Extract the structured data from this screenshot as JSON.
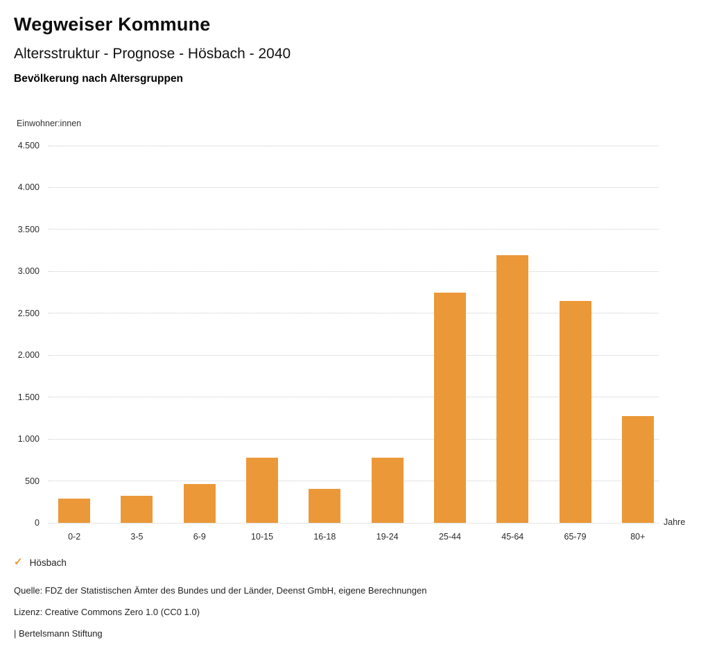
{
  "header": {
    "title": "Wegweiser Kommune",
    "subtitle": "Altersstruktur - Prognose - Hösbach - 2040",
    "caption": "Bevölkerung nach Altersgruppen"
  },
  "chart_data": {
    "type": "bar",
    "title": "Bevölkerung nach Altersgruppen",
    "categories": [
      "0-2",
      "3-5",
      "6-9",
      "10-15",
      "16-18",
      "19-24",
      "25-44",
      "45-64",
      "65-79",
      "80+"
    ],
    "series": [
      {
        "name": "Hösbach",
        "values": [
          290,
          320,
          460,
          775,
          405,
          775,
          2750,
          3190,
          2645,
          1275
        ]
      }
    ],
    "xlabel": "Jahre",
    "ylabel": "Einwohner:innen",
    "ylim": [
      0,
      4500
    ],
    "ytick_step": 500,
    "ytick_labels": [
      "0",
      "500",
      "1.000",
      "1.500",
      "2.000",
      "2.500",
      "3.000",
      "3.500",
      "4.000",
      "4.500"
    ],
    "grid": "horizontal-dotted",
    "bar_color": "#EB9839",
    "legend_position": "bottom-left"
  },
  "legend": {
    "items": [
      {
        "label": "Hösbach",
        "color": "#EB9839",
        "icon": "check-icon",
        "glyph": "✓"
      }
    ]
  },
  "footer": {
    "source": "Quelle: FDZ der Statistischen Ämter des Bundes und der Länder, Deenst GmbH, eigene Berechnungen",
    "license": "Lizenz: Creative Commons Zero 1.0 (CC0 1.0)",
    "publisher": "| Bertelsmann Stiftung"
  }
}
